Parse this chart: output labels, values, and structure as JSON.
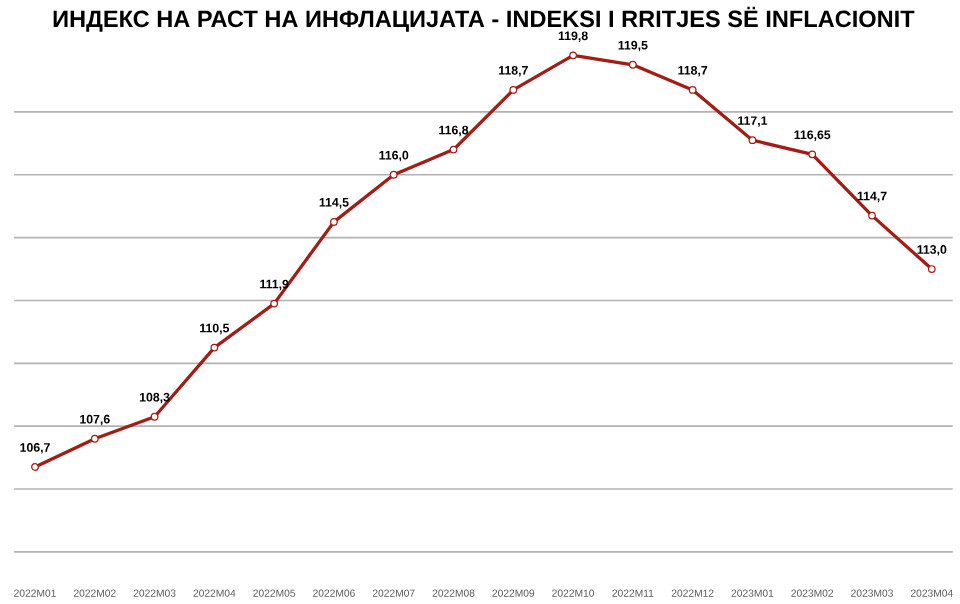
{
  "chart_data": {
    "type": "line",
    "title": "ИНДЕКС НА РАСТ НА ИНФЛАЦИЈАТА - INDEKSI I RRITJES SË INFLACIONIT",
    "categories": [
      "2022M01",
      "2022M02",
      "2022M03",
      "2022M04",
      "2022M05",
      "2022M06",
      "2022M07",
      "2022M08",
      "2022M09",
      "2022M10",
      "2022M11",
      "2022M12",
      "2023M01",
      "2023M02",
      "2023M03",
      "2023M04"
    ],
    "series": [
      {
        "color": "#a11d16",
        "values": [
          106.7,
          107.6,
          108.3,
          110.5,
          111.9,
          114.5,
          116.0,
          116.8,
          118.7,
          119.8,
          119.5,
          118.7,
          117.1,
          116.65,
          114.7,
          113.0
        ],
        "value_labels": [
          "106,7",
          "107,6",
          "108,3",
          "110,5",
          "111,9",
          "114,5",
          "116,0",
          "116,8",
          "118,7",
          "119,8",
          "119,5",
          "118,7",
          "117,1",
          "116,65",
          "114,7",
          "113,0"
        ]
      }
    ],
    "grid": "y",
    "marker": "circle",
    "line_style": "solid",
    "tick_labels": "x"
  }
}
